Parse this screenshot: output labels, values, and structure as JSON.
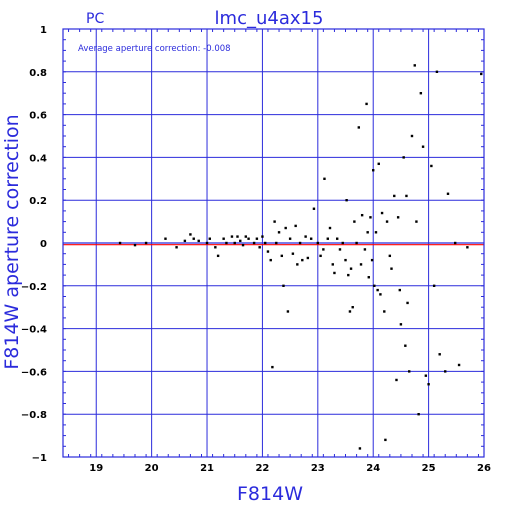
{
  "chart_data": {
    "type": "scatter",
    "panel_label": "PC",
    "title": "lmc_u4ax15",
    "annotation": "Average aperture correction: -0.008",
    "xlabel": "F814W",
    "ylabel": "F814W aperture correction",
    "xlim": [
      18.4,
      26
    ],
    "ylim": [
      -1,
      1
    ],
    "x_ticks": [
      19,
      20,
      21,
      22,
      23,
      24,
      25,
      26
    ],
    "y_ticks": [
      -1,
      -0.8,
      -0.6,
      -0.4,
      -0.2,
      0,
      0.2,
      0.4,
      0.6,
      0.8,
      1
    ],
    "grid": true,
    "average_line": {
      "value": -0.008,
      "color": "#ff0000"
    },
    "zero_line": {
      "value": 0,
      "color": "#2b2bdc"
    },
    "colors": {
      "axes": "#2b2bdc",
      "points": "#000000",
      "text": "#2b2bdc"
    },
    "points": [
      [
        19.43,
        0.0
      ],
      [
        19.7,
        -0.01
      ],
      [
        19.9,
        0.0
      ],
      [
        20.25,
        0.02
      ],
      [
        20.45,
        -0.02
      ],
      [
        20.6,
        0.01
      ],
      [
        20.7,
        0.04
      ],
      [
        20.76,
        0.02
      ],
      [
        20.85,
        0.01
      ],
      [
        21.0,
        0.0
      ],
      [
        21.05,
        0.02
      ],
      [
        21.15,
        -0.02
      ],
      [
        21.2,
        -0.06
      ],
      [
        21.3,
        0.02
      ],
      [
        21.35,
        0.0
      ],
      [
        21.45,
        0.03
      ],
      [
        21.5,
        0.0
      ],
      [
        21.55,
        0.03
      ],
      [
        21.6,
        0.01
      ],
      [
        21.65,
        -0.01
      ],
      [
        21.7,
        0.03
      ],
      [
        21.75,
        0.02
      ],
      [
        21.85,
        0.0
      ],
      [
        21.9,
        0.02
      ],
      [
        21.95,
        -0.02
      ],
      [
        22.0,
        0.03
      ],
      [
        22.05,
        0.0
      ],
      [
        22.1,
        -0.04
      ],
      [
        22.15,
        -0.08
      ],
      [
        22.18,
        -0.58
      ],
      [
        22.22,
        0.1
      ],
      [
        22.25,
        0.0
      ],
      [
        22.3,
        0.05
      ],
      [
        22.35,
        -0.06
      ],
      [
        22.38,
        -0.2
      ],
      [
        22.42,
        0.07
      ],
      [
        22.46,
        -0.32
      ],
      [
        22.5,
        0.02
      ],
      [
        22.55,
        -0.05
      ],
      [
        22.6,
        0.08
      ],
      [
        22.63,
        -0.1
      ],
      [
        22.68,
        0.0
      ],
      [
        22.72,
        -0.08
      ],
      [
        22.78,
        0.03
      ],
      [
        22.82,
        -0.07
      ],
      [
        22.88,
        0.02
      ],
      [
        22.93,
        0.16
      ],
      [
        23.0,
        0.0
      ],
      [
        23.05,
        -0.06
      ],
      [
        23.1,
        -0.03
      ],
      [
        23.12,
        0.3
      ],
      [
        23.18,
        0.02
      ],
      [
        23.22,
        0.07
      ],
      [
        23.27,
        -0.1
      ],
      [
        23.3,
        -0.14
      ],
      [
        23.35,
        0.02
      ],
      [
        23.4,
        -0.03
      ],
      [
        23.45,
        0.0
      ],
      [
        23.5,
        -0.08
      ],
      [
        23.52,
        0.2
      ],
      [
        23.55,
        -0.15
      ],
      [
        23.58,
        -0.32
      ],
      [
        23.6,
        -0.12
      ],
      [
        23.63,
        -0.3
      ],
      [
        23.66,
        0.1
      ],
      [
        23.7,
        0.0
      ],
      [
        23.74,
        0.54
      ],
      [
        23.76,
        -0.96
      ],
      [
        23.78,
        -0.1
      ],
      [
        23.8,
        0.13
      ],
      [
        23.85,
        -0.03
      ],
      [
        23.88,
        0.65
      ],
      [
        23.9,
        0.05
      ],
      [
        23.92,
        -0.16
      ],
      [
        23.95,
        0.12
      ],
      [
        23.98,
        -0.08
      ],
      [
        24.0,
        0.34
      ],
      [
        24.02,
        -0.2
      ],
      [
        24.05,
        0.05
      ],
      [
        24.08,
        -0.22
      ],
      [
        24.1,
        0.37
      ],
      [
        24.13,
        -0.24
      ],
      [
        24.16,
        0.14
      ],
      [
        24.2,
        -0.32
      ],
      [
        24.22,
        -0.92
      ],
      [
        24.25,
        0.1
      ],
      [
        24.3,
        -0.06
      ],
      [
        24.33,
        -0.12
      ],
      [
        24.38,
        0.22
      ],
      [
        24.42,
        -0.64
      ],
      [
        24.45,
        0.12
      ],
      [
        24.48,
        -0.22
      ],
      [
        24.5,
        -0.38
      ],
      [
        24.55,
        0.4
      ],
      [
        24.58,
        -0.48
      ],
      [
        24.6,
        0.22
      ],
      [
        24.62,
        -0.28
      ],
      [
        24.65,
        -0.6
      ],
      [
        24.7,
        0.5
      ],
      [
        24.75,
        0.83
      ],
      [
        24.78,
        0.1
      ],
      [
        24.82,
        -0.8
      ],
      [
        24.86,
        0.7
      ],
      [
        24.9,
        0.45
      ],
      [
        24.95,
        -0.62
      ],
      [
        25.0,
        -0.66
      ],
      [
        25.05,
        0.36
      ],
      [
        25.1,
        -0.2
      ],
      [
        25.15,
        0.8
      ],
      [
        25.2,
        -0.52
      ],
      [
        25.3,
        -0.6
      ],
      [
        25.35,
        0.23
      ],
      [
        25.48,
        0.0
      ],
      [
        25.55,
        -0.57
      ],
      [
        25.7,
        -0.02
      ],
      [
        25.95,
        0.79
      ]
    ]
  }
}
